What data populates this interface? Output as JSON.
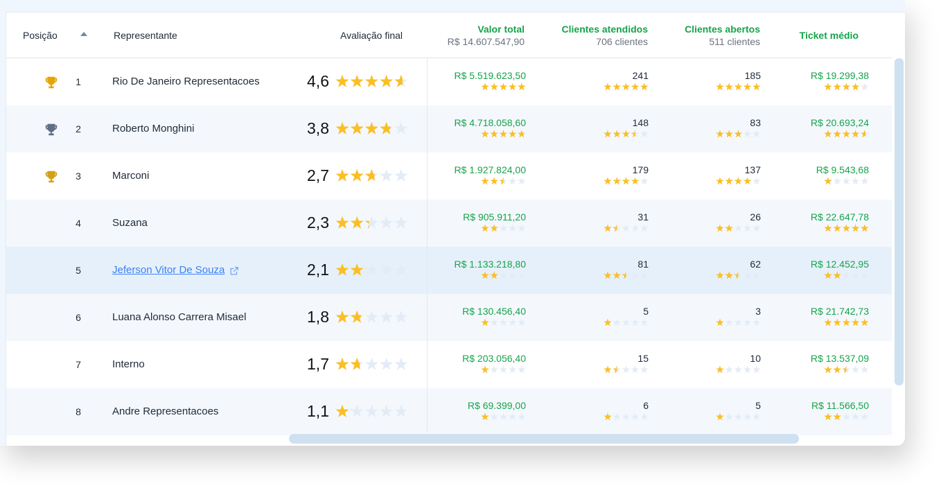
{
  "colors": {
    "star_fill": "#fbbf24",
    "star_empty": "#e3ecf6",
    "green": "#16a34a",
    "gold": "#e5a50a",
    "silver": "#5f6f86",
    "bronze": "#d4a017"
  },
  "header": {
    "posicao": "Posição",
    "representante": "Representante",
    "avaliacao": "Avaliação final",
    "valor_total": "Valor total",
    "valor_total_sub": "R$ 14.607.547,90",
    "clientes_atendidos": "Clientes atendidos",
    "clientes_atendidos_sub": "706 clientes",
    "clientes_abertos": "Clientes abertos",
    "clientes_abertos_sub": "511 clientes",
    "ticket": "Ticket médio"
  },
  "rows": [
    {
      "pos": "1",
      "name": "Rio De Janeiro Representacoes",
      "trophy": "gold",
      "score": "4,6",
      "rating": 4.6,
      "valor": "R$ 5.519.623,50",
      "valor_r": 5,
      "atendidos": "241",
      "atendidos_r": 5,
      "abertos": "185",
      "abertos_r": 5,
      "ticket": "R$ 19.299,38",
      "ticket_r": 4
    },
    {
      "pos": "2",
      "name": "Roberto Monghini",
      "trophy": "silver",
      "score": "3,8",
      "rating": 3.8,
      "valor": "R$ 4.718.058,60",
      "valor_r": 4.8,
      "atendidos": "148",
      "atendidos_r": 3.5,
      "abertos": "83",
      "abertos_r": 3,
      "ticket": "R$ 20.693,24",
      "ticket_r": 4.6
    },
    {
      "pos": "3",
      "name": "Marconi",
      "trophy": "bronze",
      "score": "2,7",
      "rating": 2.7,
      "valor": "R$ 1.927.824,00",
      "valor_r": 2.5,
      "atendidos": "179",
      "atendidos_r": 4,
      "abertos": "137",
      "abertos_r": 4,
      "ticket": "R$ 9.543,68",
      "ticket_r": 1
    },
    {
      "pos": "4",
      "name": "Suzana",
      "trophy": "",
      "score": "2,3",
      "rating": 2.3,
      "valor": "R$ 905.911,20",
      "valor_r": 2,
      "atendidos": "31",
      "atendidos_r": 1.5,
      "abertos": "26",
      "abertos_r": 2,
      "ticket": "R$ 22.647,78",
      "ticket_r": 5
    },
    {
      "pos": "5",
      "name": "Jeferson Vitor De Souza",
      "trophy": "",
      "score": "2,1",
      "rating": 2.1,
      "link": true,
      "valor": "R$ 1.133.218,80",
      "valor_r": 2,
      "atendidos": "81",
      "atendidos_r": 2.5,
      "abertos": "62",
      "abertos_r": 2.5,
      "ticket": "R$ 12.452,95",
      "ticket_r": 2
    },
    {
      "pos": "6",
      "name": "Luana Alonso Carrera Misael",
      "trophy": "",
      "score": "1,8",
      "rating": 1.8,
      "valor": "R$ 130.456,40",
      "valor_r": 1,
      "atendidos": "5",
      "atendidos_r": 1,
      "abertos": "3",
      "abertos_r": 1,
      "ticket": "R$ 21.742,73",
      "ticket_r": 5
    },
    {
      "pos": "7",
      "name": "Interno",
      "trophy": "",
      "score": "1,7",
      "rating": 1.7,
      "valor": "R$ 203.056,40",
      "valor_r": 1,
      "atendidos": "15",
      "atendidos_r": 1.5,
      "abertos": "10",
      "abertos_r": 1,
      "ticket": "R$ 13.537,09",
      "ticket_r": 2.5
    },
    {
      "pos": "8",
      "name": "Andre Representacoes",
      "trophy": "",
      "score": "1,1",
      "rating": 1.1,
      "valor": "R$ 69.399,00",
      "valor_r": 1,
      "atendidos": "6",
      "atendidos_r": 1,
      "abertos": "5",
      "abertos_r": 1,
      "ticket": "R$ 11.566,50",
      "ticket_r": 2
    }
  ]
}
